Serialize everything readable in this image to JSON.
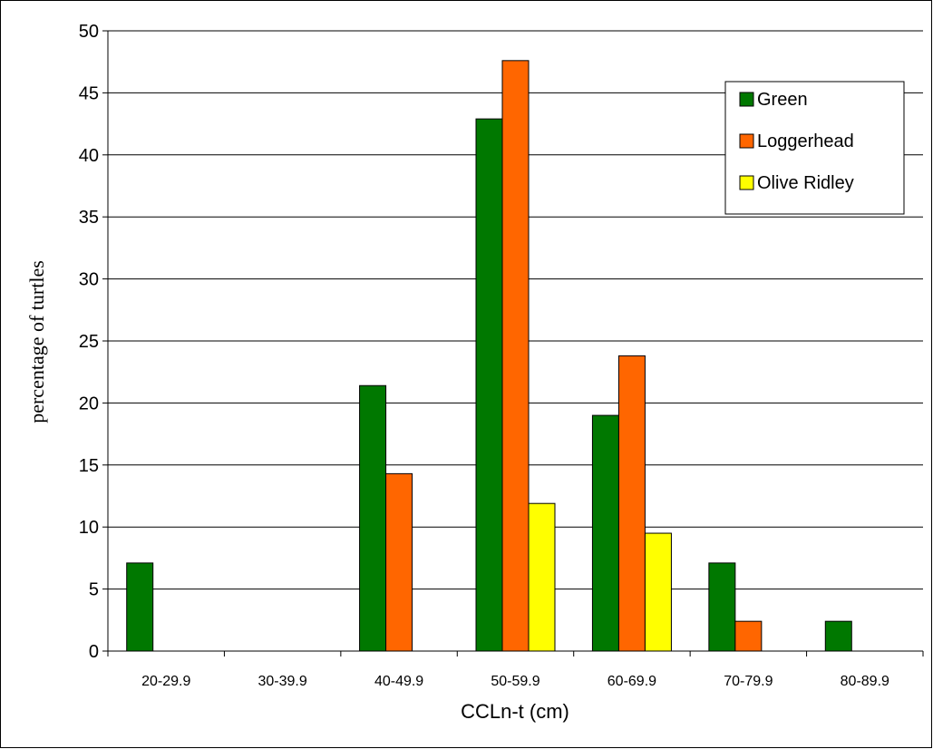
{
  "chart_data": {
    "type": "bar",
    "title": "",
    "xlabel": "CCLn-t (cm)",
    "ylabel": "percentage of turtles",
    "categories": [
      "20-29.9",
      "30-39.9",
      "40-49.9",
      "50-59.9",
      "60-69.9",
      "70-79.9",
      "80-89.9"
    ],
    "series": [
      {
        "name": "Green",
        "color": "#007800",
        "values": [
          7.1,
          0,
          21.4,
          42.9,
          19.0,
          7.1,
          2.4
        ]
      },
      {
        "name": "Loggerhead",
        "color": "#ff6600",
        "values": [
          0,
          0,
          14.3,
          47.6,
          23.8,
          2.4,
          0
        ]
      },
      {
        "name": "Olive Ridley",
        "color": "#ffff00",
        "values": [
          0,
          0,
          0,
          11.9,
          9.5,
          0,
          0
        ]
      }
    ],
    "ylim": [
      0,
      50
    ],
    "yticks": [
      "0",
      "5",
      "10",
      "15",
      "20",
      "25",
      "30",
      "35",
      "40",
      "45",
      "50"
    ],
    "grid": "horizontal",
    "legend_position": "top-right"
  }
}
